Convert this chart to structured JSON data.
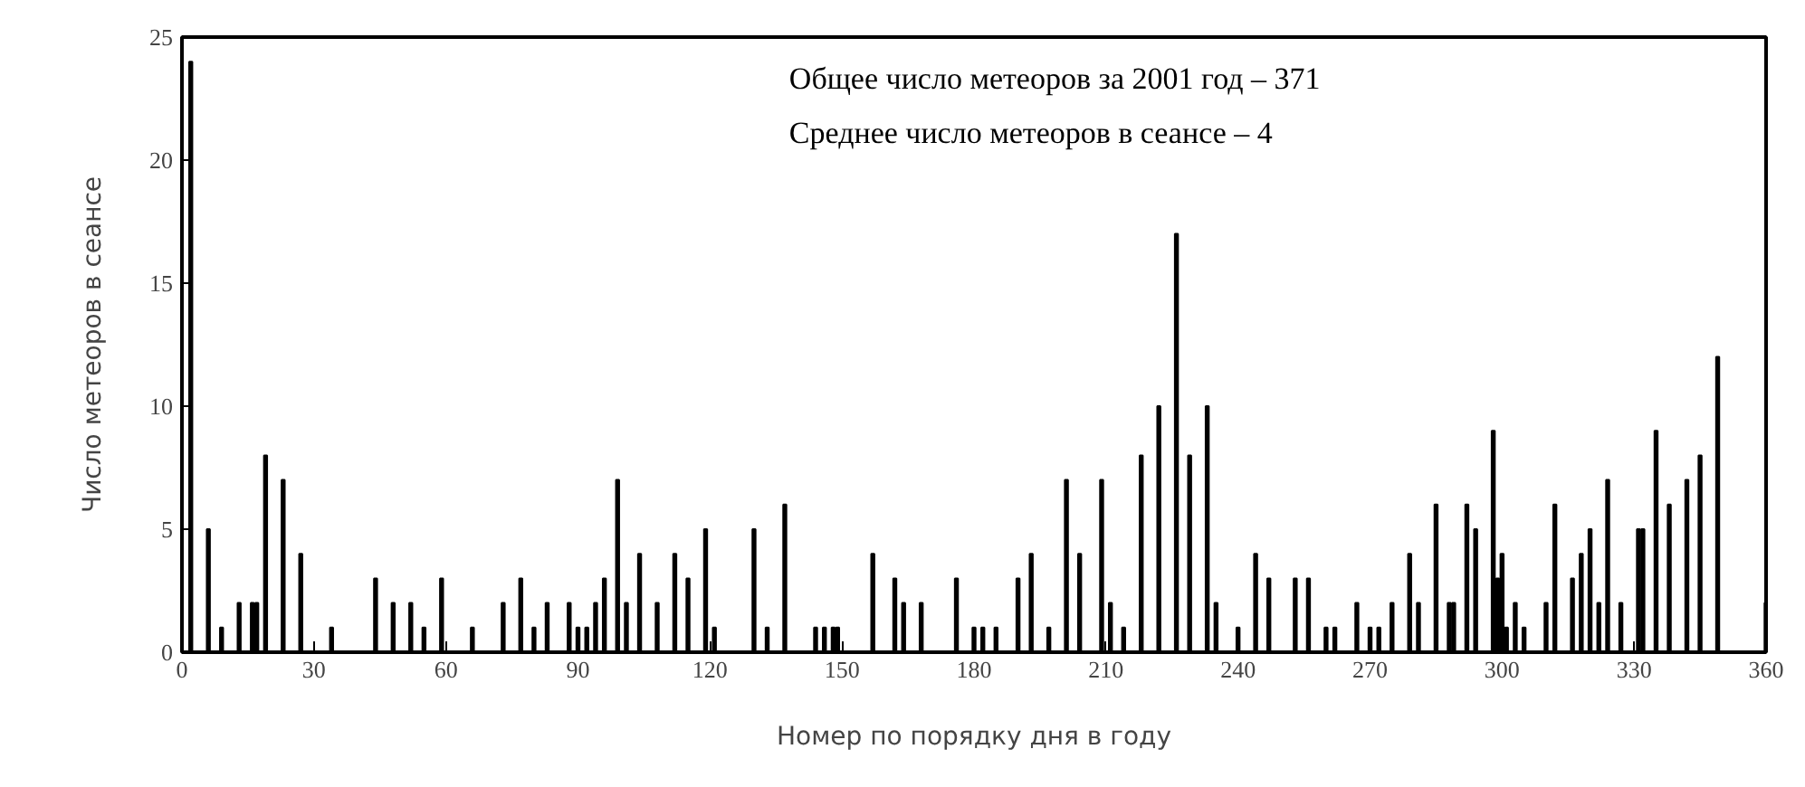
{
  "chart_data": {
    "type": "bar",
    "xlabel": "Номер по порядку дня в году",
    "ylabel": "Число метеоров в сеансе",
    "annotations": [
      "Общее число метеоров за 2001 год – 371",
      "Среднее число метеоров в сеансе   –   4"
    ],
    "x": [
      2,
      6,
      9,
      13,
      16,
      17,
      19,
      23,
      27,
      34,
      44,
      48,
      52,
      55,
      59,
      66,
      73,
      77,
      80,
      83,
      88,
      90,
      92,
      94,
      96,
      99,
      101,
      104,
      108,
      112,
      115,
      119,
      121,
      130,
      133,
      137,
      144,
      146,
      148,
      149,
      157,
      162,
      164,
      168,
      176,
      180,
      182,
      185,
      190,
      193,
      197,
      201,
      204,
      209,
      211,
      214,
      218,
      222,
      226,
      229,
      233,
      235,
      240,
      244,
      247,
      253,
      256,
      260,
      262,
      267,
      270,
      272,
      275,
      279,
      281,
      285,
      288,
      289,
      292,
      294,
      298,
      299,
      300,
      301,
      303,
      305,
      310,
      312,
      316,
      318,
      320,
      322,
      324,
      327,
      331,
      332,
      335,
      338,
      342,
      345,
      349,
      360
    ],
    "series": [
      {
        "color": "#000000",
        "values": [
          24,
          5,
          1,
          2,
          2,
          2,
          8,
          7,
          4,
          1,
          3,
          2,
          2,
          1,
          3,
          1,
          2,
          3,
          1,
          2,
          2,
          1,
          1,
          2,
          3,
          7,
          2,
          4,
          2,
          4,
          3,
          5,
          1,
          5,
          1,
          6,
          1,
          1,
          1,
          1,
          4,
          3,
          2,
          2,
          3,
          1,
          1,
          1,
          3,
          4,
          1,
          7,
          4,
          7,
          2,
          1,
          8,
          10,
          17,
          8,
          10,
          2,
          1,
          4,
          3,
          3,
          3,
          1,
          1,
          2,
          1,
          1,
          2,
          4,
          2,
          6,
          2,
          2,
          6,
          5,
          9,
          3,
          4,
          1,
          2,
          1,
          2,
          6,
          3,
          4,
          5,
          2,
          7,
          2,
          5,
          5,
          9,
          6,
          7,
          8,
          12,
          2
        ]
      }
    ],
    "xlim": [
      0,
      360
    ],
    "ylim": [
      0,
      25
    ],
    "xticks": [
      0,
      30,
      60,
      90,
      120,
      150,
      180,
      210,
      240,
      270,
      300,
      330,
      360
    ],
    "yticks": [
      0,
      5,
      10,
      15,
      20,
      25
    ],
    "grid": false
  }
}
